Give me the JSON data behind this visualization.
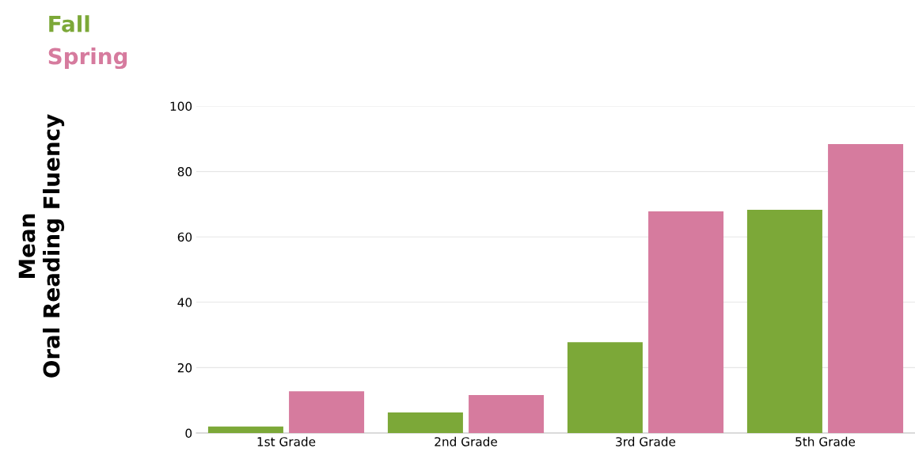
{
  "chart_data": {
    "type": "bar",
    "ylabel": "Mean\nOral Reading Fluency",
    "categories": [
      "1st Grade",
      "2nd Grade",
      "3rd Grade",
      "5th Grade"
    ],
    "series": [
      {
        "name": "Fall",
        "color": "#7ca838",
        "values": [
          2,
          6.3,
          27.8,
          68.3
        ]
      },
      {
        "name": "Spring",
        "color": "#d67b9e",
        "values": [
          12.8,
          11.6,
          67.8,
          88.4
        ]
      }
    ],
    "ylim": [
      0,
      100
    ],
    "yticks": [
      0,
      20,
      40,
      60,
      80,
      100
    ],
    "grid": "y",
    "legend": "top left"
  }
}
